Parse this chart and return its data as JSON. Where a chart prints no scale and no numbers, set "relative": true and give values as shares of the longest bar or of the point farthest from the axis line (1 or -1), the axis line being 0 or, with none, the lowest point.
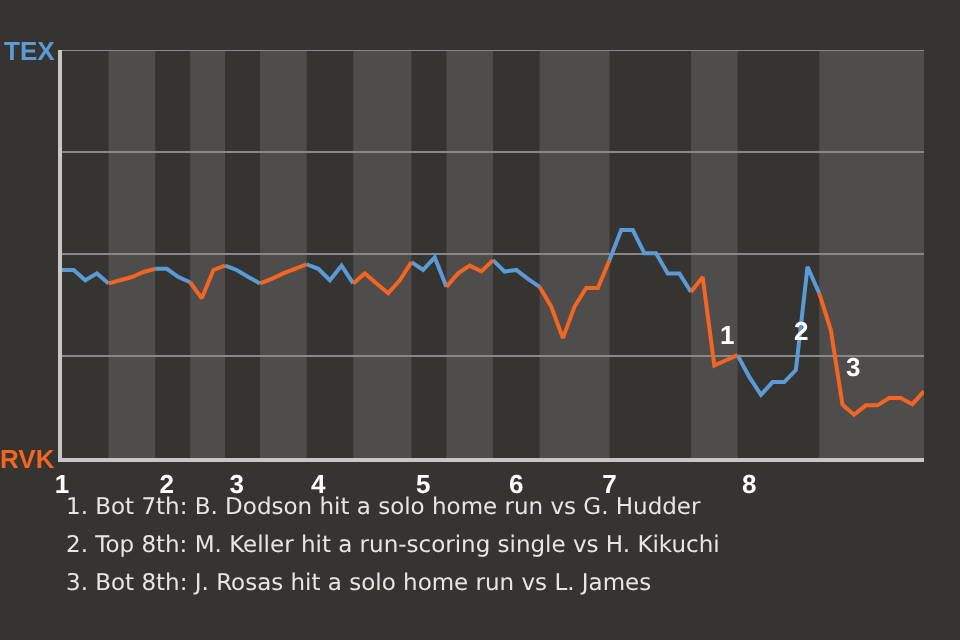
{
  "chart_data": {
    "type": "line",
    "relative": true,
    "categories": [
      "1",
      null,
      null,
      null,
      null,
      null,
      null,
      null,
      null,
      "2",
      null,
      null,
      null,
      null,
      null,
      "3",
      null,
      null,
      null,
      null,
      null,
      null,
      "4",
      null,
      null,
      null,
      null,
      null,
      null,
      null,
      null,
      "5",
      null,
      null,
      null,
      null,
      null,
      null,
      null,
      "6",
      null,
      null,
      null,
      null,
      null,
      null,
      null,
      "7",
      null,
      null,
      null,
      null,
      null,
      null,
      null,
      null,
      null,
      null,
      null,
      "8",
      null,
      null,
      null,
      null,
      null,
      null,
      null,
      null,
      null,
      null,
      null,
      null,
      null,
      null,
      null
    ],
    "marker": "none",
    "line_style": "solid",
    "ref_lines": [
      {
        "axis": "y",
        "value": 0.447,
        "color": "#8a8886"
      },
      {
        "axis": "y",
        "value": 0.895,
        "color": "#8a8886"
      },
      {
        "axis": "y",
        "value": 1.342,
        "color": "#8a8886"
      },
      {
        "axis": "y",
        "value": 1.79,
        "color": "#8a8886"
      }
    ],
    "series": [
      {
        "color": "#5b9bd5",
        "values": [
          0.825,
          0.825,
          0.78,
          0.81,
          0.766,
          null,
          null,
          null,
          0.83,
          0.83,
          0.794,
          0.771,
          null,
          null,
          0.844,
          0.825,
          0.794,
          0.766,
          null,
          null,
          null,
          0.85,
          0.83,
          0.78,
          0.844,
          0.766,
          null,
          null,
          null,
          null,
          0.859,
          0.825,
          0.88,
          0.751,
          null,
          null,
          null,
          0.868,
          0.818,
          0.825,
          0.786,
          0.751,
          null,
          null,
          null,
          null,
          null,
          0.868,
          1,
          1,
          0.898,
          0.898,
          0.81,
          0.81,
          0.728,
          null,
          null,
          null,
          0.451,
          0.356,
          0.277,
          0.333,
          0.333,
          0.386,
          0.839,
          0.723,
          null,
          null,
          null,
          null,
          null,
          null,
          null,
          null,
          null
        ]
      },
      {
        "color": "#f26522",
        "values": [
          null,
          null,
          null,
          null,
          0.766,
          0.78,
          0.794,
          0.816,
          0.83,
          null,
          null,
          0.771,
          0.701,
          0.825,
          0.844,
          null,
          null,
          0.766,
          0.786,
          0.81,
          0.83,
          0.85,
          null,
          null,
          null,
          0.766,
          0.81,
          0.766,
          0.723,
          0.78,
          0.859,
          null,
          null,
          0.751,
          0.81,
          0.844,
          0.819,
          0.868,
          null,
          null,
          null,
          0.751,
          0.664,
          0.526,
          0.664,
          0.746,
          0.746,
          0.868,
          null,
          null,
          null,
          null,
          null,
          null,
          0.728,
          0.794,
          0.406,
          0.429,
          0.451,
          null,
          null,
          null,
          null,
          null,
          null,
          0.723,
          0.562,
          0.234,
          0.19,
          0.231,
          0.231,
          0.263,
          0.263,
          0.236,
          0.292
        ]
      }
    ],
    "annotations": [
      "TEX",
      "RVK",
      "1",
      "2",
      "3",
      "1. Bot 7th: B. Dodson hit a solo home run vs G. Hudder",
      "2. Top 8th: M. Keller hit a run-scoring single vs H. Kikuchi",
      "3. Bot 8th: J. Rosas hit a solo home run vs L. James"
    ]
  }
}
